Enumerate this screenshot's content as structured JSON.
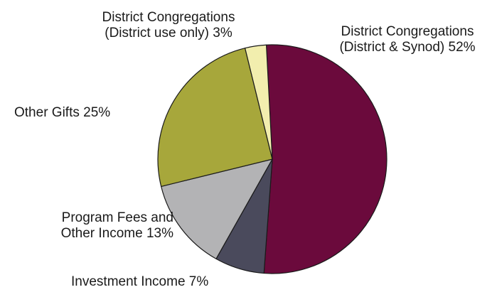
{
  "chart_data": {
    "type": "pie",
    "title": "",
    "start_angle_deg": -3,
    "direction": "clockwise",
    "legend": "none",
    "slices": [
      {
        "line1": "District Congregations",
        "line2": "(District & Synod) 52%",
        "value": 52,
        "color": "#6b0a3c"
      },
      {
        "line1": "Investment Income 7%",
        "line2": "",
        "value": 7,
        "color": "#4a4a5c"
      },
      {
        "line1": "Program Fees and",
        "line2": "Other Income 13%",
        "value": 13,
        "color": "#b3b3b5"
      },
      {
        "line1": "Other Gifts 25%",
        "line2": "",
        "value": 25,
        "color": "#a7a73b"
      },
      {
        "line1": "District Congregations",
        "line2": "(District use only) 3%",
        "value": 3,
        "color": "#f2eeae"
      }
    ]
  }
}
